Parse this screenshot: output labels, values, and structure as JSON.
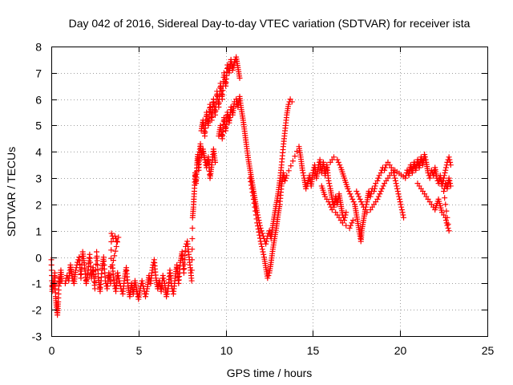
{
  "chart_data": {
    "type": "scatter",
    "title": "Day 042 of 2016, Sidereal Day-to-day VTEC variation (SDTVAR) for receiver ista",
    "xlabel": "GPS time / hours",
    "ylabel": "SDTVAR / TECUs",
    "xlim": [
      0,
      25
    ],
    "ylim": [
      -3,
      8
    ],
    "xticks": [
      "0",
      "5",
      "10",
      "15",
      "20",
      "25"
    ],
    "yticks": [
      "-3",
      "-2",
      "-1",
      "0",
      "1",
      "2",
      "3",
      "4",
      "5",
      "6",
      "7",
      "8"
    ],
    "grid": true,
    "marker": "plus",
    "color": "#ff0000",
    "series": [
      {
        "name": "",
        "points": [
          [
            0.0,
            -0.1
          ],
          [
            0.05,
            -1.3
          ],
          [
            0.1,
            -0.9
          ],
          [
            0.15,
            -1.2
          ],
          [
            0.2,
            -0.6
          ],
          [
            0.25,
            -1.5
          ],
          [
            0.3,
            -1.9
          ],
          [
            0.35,
            -2.2
          ],
          [
            0.4,
            -1.7
          ],
          [
            0.45,
            -0.8
          ],
          [
            0.5,
            -1.0
          ],
          [
            0.55,
            -0.5
          ],
          [
            0.6,
            -0.9
          ],
          [
            0.8,
            -1.0
          ],
          [
            0.9,
            -0.7
          ],
          [
            1.0,
            -0.9
          ],
          [
            1.1,
            -0.3
          ],
          [
            1.2,
            -0.8
          ],
          [
            1.3,
            -1.0
          ],
          [
            1.4,
            -0.5
          ],
          [
            1.5,
            -0.2
          ],
          [
            1.6,
            0.0
          ],
          [
            1.7,
            -0.8
          ],
          [
            1.8,
            0.2
          ],
          [
            1.9,
            -0.3
          ],
          [
            2.0,
            -1.0
          ],
          [
            2.1,
            -0.6
          ],
          [
            2.2,
            0.1
          ],
          [
            2.3,
            -0.8
          ],
          [
            2.4,
            -0.4
          ],
          [
            2.5,
            -1.2
          ],
          [
            2.6,
            0.2
          ],
          [
            2.7,
            -0.8
          ],
          [
            2.8,
            -1.3
          ],
          [
            2.9,
            -0.5
          ],
          [
            3.0,
            0.0
          ],
          [
            3.1,
            -0.9
          ],
          [
            3.2,
            -1.2
          ],
          [
            3.3,
            -0.6
          ],
          [
            3.4,
            -1.0
          ],
          [
            3.45,
            0.9
          ],
          [
            3.55,
            0.7
          ],
          [
            3.65,
            0.8
          ],
          [
            3.75,
            0.6
          ],
          [
            3.85,
            0.75
          ],
          [
            3.5,
            -0.3
          ],
          [
            3.6,
            -1.0
          ],
          [
            3.7,
            -1.3
          ],
          [
            3.8,
            -0.6
          ],
          [
            3.9,
            -0.9
          ],
          [
            4.0,
            -1.2
          ],
          [
            4.1,
            -1.4
          ],
          [
            4.2,
            -0.8
          ],
          [
            4.3,
            -0.4
          ],
          [
            4.4,
            -1.1
          ],
          [
            4.5,
            -1.5
          ],
          [
            4.6,
            -1.0
          ],
          [
            4.7,
            -1.4
          ],
          [
            4.8,
            -0.9
          ],
          [
            4.9,
            -1.3
          ],
          [
            5.0,
            -1.6
          ],
          [
            5.1,
            -1.2
          ],
          [
            5.2,
            -0.9
          ],
          [
            5.4,
            -1.5
          ],
          [
            5.5,
            -1.2
          ],
          [
            5.6,
            -0.7
          ],
          [
            5.7,
            -1.0
          ],
          [
            5.8,
            -0.4
          ],
          [
            5.9,
            -0.1
          ],
          [
            6.0,
            -0.8
          ],
          [
            6.1,
            -1.2
          ],
          [
            6.2,
            -0.9
          ],
          [
            6.3,
            -1.3
          ],
          [
            6.4,
            -0.7
          ],
          [
            6.5,
            -1.0
          ],
          [
            6.6,
            -1.5
          ],
          [
            6.7,
            -1.2
          ],
          [
            6.8,
            -0.5
          ],
          [
            6.9,
            -1.1
          ],
          [
            7.0,
            -1.4
          ],
          [
            7.1,
            -0.8
          ],
          [
            7.2,
            -0.3
          ],
          [
            7.3,
            -1.0
          ],
          [
            7.4,
            -0.2
          ],
          [
            7.5,
            0.2
          ],
          [
            7.6,
            -0.6
          ],
          [
            7.7,
            0.4
          ],
          [
            7.8,
            0.6
          ],
          [
            7.9,
            0.0
          ],
          [
            8.0,
            -0.6
          ],
          [
            8.05,
            -0.9
          ],
          [
            8.1,
            1.5
          ],
          [
            8.15,
            1.9
          ],
          [
            8.2,
            2.5
          ],
          [
            8.25,
            3.2
          ],
          [
            8.3,
            2.8
          ],
          [
            8.35,
            3.5
          ],
          [
            8.4,
            3.9
          ],
          [
            8.45,
            3.3
          ],
          [
            8.5,
            4.0
          ],
          [
            8.55,
            4.3
          ],
          [
            8.6,
            3.8
          ],
          [
            8.7,
            4.1
          ],
          [
            8.8,
            3.7
          ],
          [
            8.9,
            3.4
          ],
          [
            9.0,
            3.8
          ],
          [
            9.1,
            3.0
          ],
          [
            9.2,
            3.5
          ],
          [
            9.3,
            4.1
          ],
          [
            9.4,
            3.6
          ],
          [
            8.6,
            4.8
          ],
          [
            8.7,
            5.2
          ],
          [
            8.8,
            4.6
          ],
          [
            8.9,
            5.5
          ],
          [
            9.0,
            5.0
          ],
          [
            9.1,
            5.8
          ],
          [
            9.2,
            5.2
          ],
          [
            9.3,
            6.0
          ],
          [
            9.4,
            5.4
          ],
          [
            9.5,
            6.3
          ],
          [
            9.6,
            5.7
          ],
          [
            9.7,
            6.6
          ],
          [
            9.8,
            6.0
          ],
          [
            9.9,
            7.0
          ],
          [
            10.0,
            6.5
          ],
          [
            10.1,
            7.3
          ],
          [
            10.2,
            7.0
          ],
          [
            10.3,
            7.5
          ],
          [
            10.4,
            7.1
          ],
          [
            10.5,
            7.4
          ],
          [
            10.6,
            7.6
          ],
          [
            10.7,
            7.2
          ],
          [
            10.8,
            6.8
          ],
          [
            9.6,
            4.6
          ],
          [
            9.7,
            5.0
          ],
          [
            9.8,
            4.5
          ],
          [
            9.9,
            5.3
          ],
          [
            10.0,
            4.8
          ],
          [
            10.1,
            5.5
          ],
          [
            10.2,
            5.1
          ],
          [
            10.3,
            5.7
          ],
          [
            10.4,
            5.4
          ],
          [
            10.5,
            5.9
          ],
          [
            10.6,
            6.0
          ],
          [
            10.7,
            5.7
          ],
          [
            10.8,
            6.1
          ],
          [
            10.9,
            5.6
          ],
          [
            11.0,
            5.2
          ],
          [
            11.1,
            4.7
          ],
          [
            11.2,
            4.2
          ],
          [
            11.3,
            3.7
          ],
          [
            11.4,
            3.3
          ],
          [
            11.5,
            2.9
          ],
          [
            11.6,
            2.5
          ],
          [
            11.7,
            2.1
          ],
          [
            11.8,
            1.7
          ],
          [
            11.9,
            1.4
          ],
          [
            12.0,
            1.1
          ],
          [
            12.1,
            0.9
          ],
          [
            12.2,
            0.7
          ],
          [
            12.3,
            0.5
          ],
          [
            12.4,
            0.8
          ],
          [
            12.5,
            1.0
          ],
          [
            12.6,
            0.7
          ],
          [
            12.7,
            1.2
          ],
          [
            12.8,
            1.6
          ],
          [
            12.9,
            2.0
          ],
          [
            13.0,
            2.4
          ],
          [
            13.1,
            2.9
          ],
          [
            13.2,
            3.5
          ],
          [
            13.3,
            4.2
          ],
          [
            13.4,
            4.8
          ],
          [
            13.5,
            5.4
          ],
          [
            13.6,
            5.8
          ],
          [
            13.7,
            6.0
          ],
          [
            13.8,
            5.9
          ],
          [
            11.4,
            3.0
          ],
          [
            11.6,
            2.2
          ],
          [
            11.8,
            1.3
          ],
          [
            12.0,
            0.6
          ],
          [
            12.2,
            0.0
          ],
          [
            12.3,
            -0.4
          ],
          [
            12.4,
            -0.8
          ],
          [
            12.5,
            -0.6
          ],
          [
            12.6,
            -0.2
          ],
          [
            12.7,
            0.3
          ],
          [
            12.8,
            0.7
          ],
          [
            12.9,
            1.1
          ],
          [
            13.0,
            1.6
          ],
          [
            13.1,
            2.0
          ],
          [
            13.2,
            2.7
          ],
          [
            13.3,
            3.2
          ],
          [
            13.4,
            2.9
          ],
          [
            13.5,
            3.1
          ],
          [
            14.2,
            4.2
          ],
          [
            14.3,
            3.8
          ],
          [
            14.4,
            3.3
          ],
          [
            14.5,
            3.0
          ],
          [
            14.6,
            2.6
          ],
          [
            14.7,
            2.8
          ],
          [
            14.8,
            3.1
          ],
          [
            14.9,
            2.7
          ],
          [
            15.0,
            3.2
          ],
          [
            15.1,
            3.5
          ],
          [
            15.2,
            3.0
          ],
          [
            15.3,
            3.4
          ],
          [
            15.4,
            3.7
          ],
          [
            15.5,
            3.2
          ],
          [
            15.6,
            3.6
          ],
          [
            15.7,
            3.1
          ],
          [
            15.8,
            3.5
          ],
          [
            15.9,
            2.9
          ],
          [
            16.0,
            2.6
          ],
          [
            16.1,
            2.2
          ],
          [
            16.2,
            1.9
          ],
          [
            16.3,
            2.3
          ],
          [
            16.4,
            2.0
          ],
          [
            16.5,
            2.4
          ],
          [
            16.6,
            2.0
          ],
          [
            16.7,
            1.6
          ],
          [
            16.8,
            1.4
          ],
          [
            16.9,
            1.7
          ],
          [
            15.5,
            2.7
          ],
          [
            15.7,
            2.3
          ],
          [
            15.9,
            2.1
          ],
          [
            16.1,
            1.8
          ],
          [
            16.3,
            1.7
          ],
          [
            16.5,
            1.5
          ],
          [
            16.7,
            1.3
          ],
          [
            16.9,
            1.2
          ],
          [
            17.1,
            1.1
          ],
          [
            17.3,
            1.4
          ],
          [
            16.0,
            3.6
          ],
          [
            16.2,
            3.8
          ],
          [
            16.4,
            3.7
          ],
          [
            16.6,
            3.4
          ],
          [
            16.8,
            3.0
          ],
          [
            17.0,
            2.6
          ],
          [
            17.2,
            2.3
          ],
          [
            17.4,
            2.0
          ],
          [
            17.5,
            1.6
          ],
          [
            17.6,
            1.2
          ],
          [
            17.7,
            0.8
          ],
          [
            17.75,
            0.6
          ],
          [
            17.8,
            1.0
          ],
          [
            17.9,
            1.4
          ],
          [
            18.0,
            1.8
          ],
          [
            18.1,
            2.1
          ],
          [
            18.2,
            2.5
          ],
          [
            18.3,
            2.3
          ],
          [
            18.4,
            2.6
          ],
          [
            18.5,
            2.5
          ],
          [
            18.6,
            2.8
          ],
          [
            18.7,
            2.9
          ],
          [
            18.8,
            3.1
          ],
          [
            18.9,
            3.2
          ],
          [
            19.0,
            3.4
          ],
          [
            19.1,
            3.3
          ],
          [
            19.2,
            3.5
          ],
          [
            19.3,
            3.6
          ],
          [
            19.4,
            3.5
          ],
          [
            19.5,
            3.4
          ],
          [
            19.6,
            3.3
          ],
          [
            19.7,
            3.0
          ],
          [
            19.8,
            2.7
          ],
          [
            19.9,
            2.4
          ],
          [
            20.0,
            2.1
          ],
          [
            20.1,
            1.8
          ],
          [
            20.2,
            1.5
          ],
          [
            17.5,
            2.5
          ],
          [
            17.7,
            2.2
          ],
          [
            17.9,
            1.9
          ],
          [
            18.1,
            1.7
          ],
          [
            18.3,
            1.8
          ],
          [
            18.5,
            2.0
          ],
          [
            18.7,
            2.2
          ],
          [
            18.9,
            2.5
          ],
          [
            19.1,
            2.8
          ],
          [
            19.3,
            3.0
          ],
          [
            19.5,
            3.2
          ],
          [
            19.7,
            3.3
          ],
          [
            20.3,
            3.0
          ],
          [
            20.4,
            3.3
          ],
          [
            20.5,
            3.1
          ],
          [
            20.6,
            3.5
          ],
          [
            20.7,
            3.2
          ],
          [
            20.8,
            3.6
          ],
          [
            20.9,
            3.3
          ],
          [
            21.0,
            3.7
          ],
          [
            21.1,
            3.4
          ],
          [
            21.2,
            3.8
          ],
          [
            21.3,
            3.5
          ],
          [
            21.4,
            3.9
          ],
          [
            21.5,
            3.6
          ],
          [
            21.6,
            3.2
          ],
          [
            21.7,
            3.0
          ],
          [
            21.8,
            3.3
          ],
          [
            21.9,
            3.1
          ],
          [
            22.0,
            3.4
          ],
          [
            22.1,
            3.0
          ],
          [
            22.2,
            2.8
          ],
          [
            22.3,
            3.1
          ],
          [
            22.4,
            2.7
          ],
          [
            22.5,
            3.0
          ],
          [
            22.6,
            3.3
          ],
          [
            22.7,
            3.6
          ],
          [
            22.8,
            3.8
          ],
          [
            22.9,
            3.5
          ],
          [
            21.0,
            2.8
          ],
          [
            21.2,
            2.6
          ],
          [
            21.4,
            2.4
          ],
          [
            21.6,
            2.2
          ],
          [
            21.8,
            2.0
          ],
          [
            22.0,
            1.8
          ],
          [
            22.2,
            2.2
          ],
          [
            22.4,
            1.7
          ],
          [
            22.6,
            1.5
          ],
          [
            22.7,
            1.2
          ],
          [
            22.8,
            1.0
          ],
          [
            22.5,
            2.5
          ],
          [
            22.6,
            2.8
          ],
          [
            22.7,
            2.6
          ],
          [
            22.8,
            3.0
          ],
          [
            22.9,
            2.7
          ]
        ]
      }
    ]
  }
}
